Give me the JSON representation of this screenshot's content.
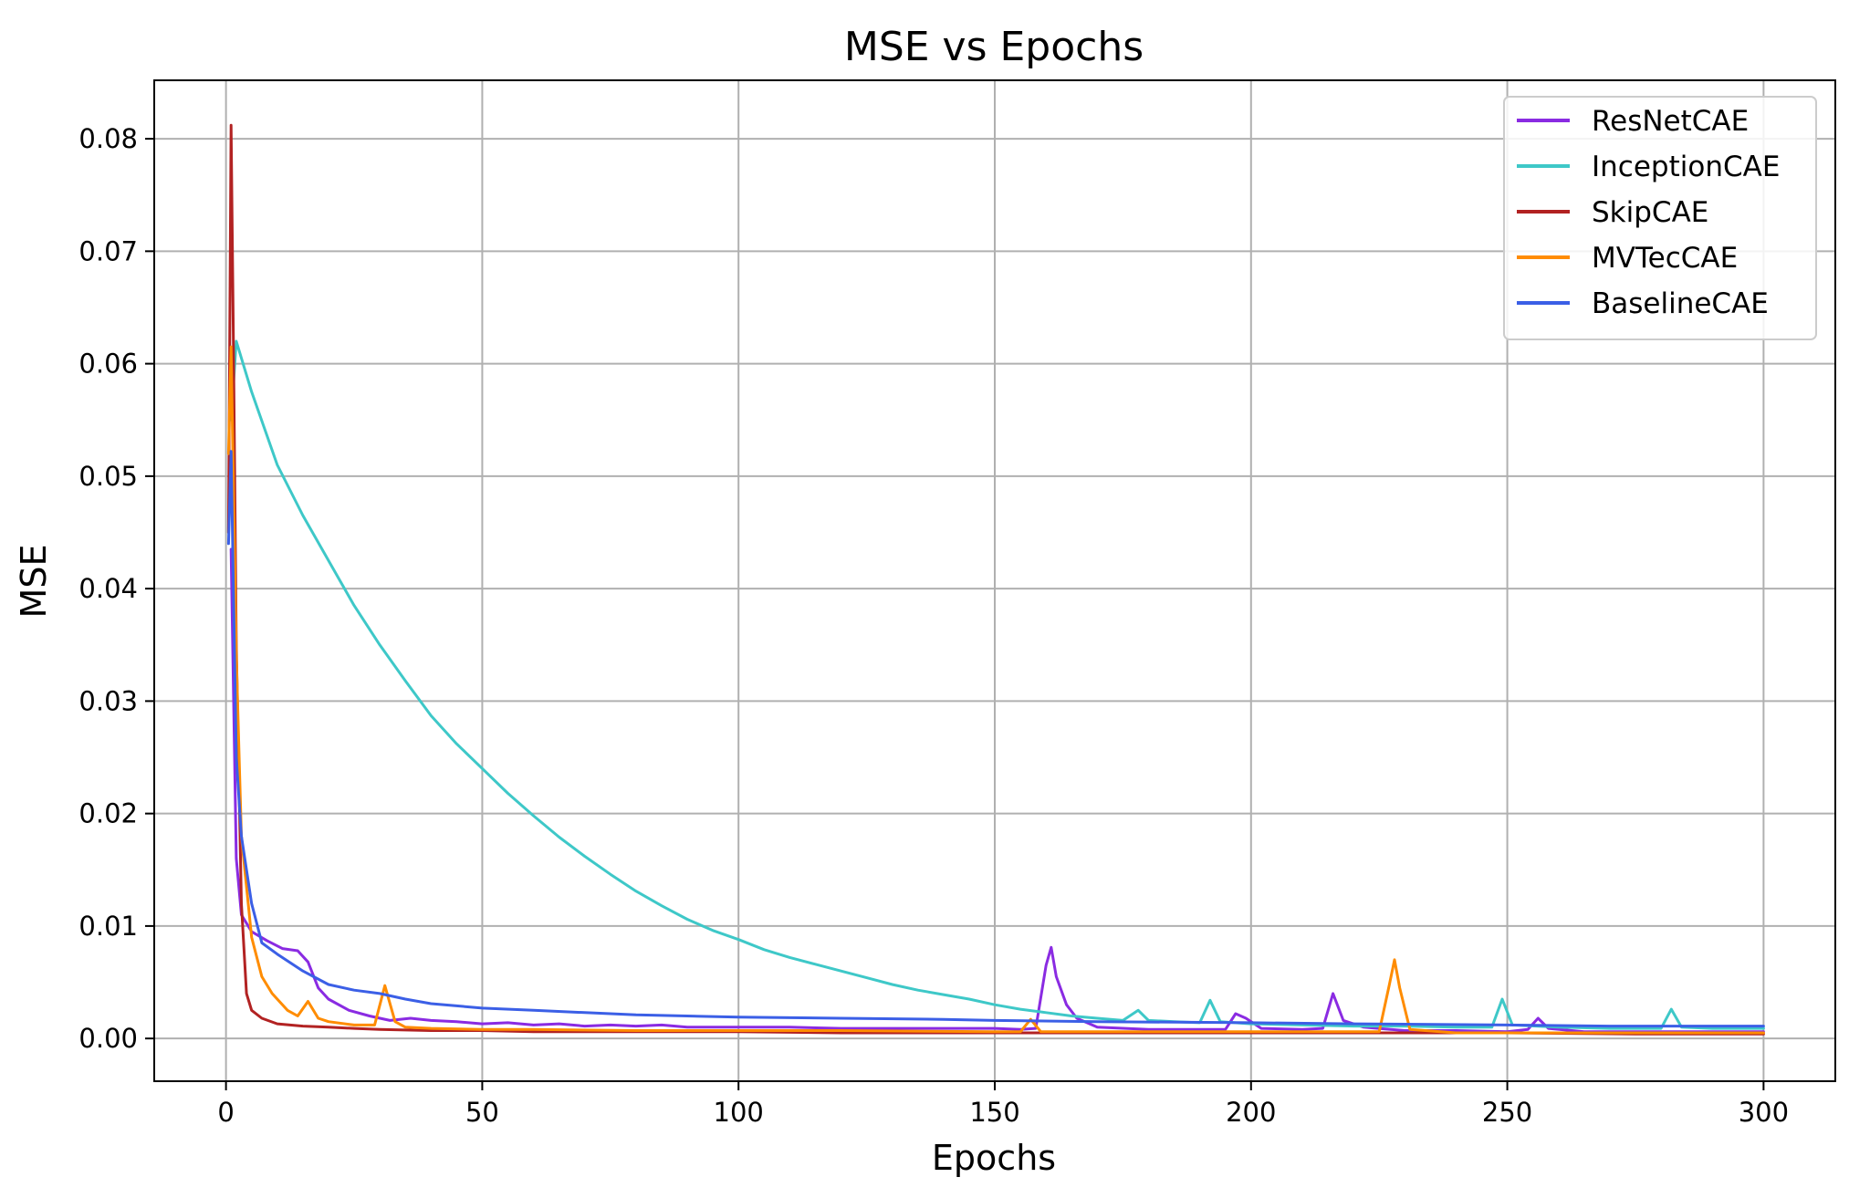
{
  "chart_data": {
    "type": "line",
    "title": "MSE vs Epochs",
    "xlabel": "Epochs",
    "ylabel": "MSE",
    "xlim": [
      -14,
      314
    ],
    "ylim": [
      -0.0038,
      0.0852
    ],
    "xticks": [
      0,
      50,
      100,
      150,
      200,
      250,
      300
    ],
    "yticks": [
      0.0,
      0.01,
      0.02,
      0.03,
      0.04,
      0.05,
      0.06,
      0.07,
      0.08
    ],
    "xtick_labels": [
      "0",
      "50",
      "100",
      "150",
      "200",
      "250",
      "300"
    ],
    "ytick_labels": [
      "0.00",
      "0.01",
      "0.02",
      "0.03",
      "0.04",
      "0.05",
      "0.06",
      "0.07",
      "0.08"
    ],
    "grid": true,
    "legend_position": "top-right",
    "series": [
      {
        "name": "ResNetCAE",
        "color": "#8a2be2",
        "points": [
          [
            1,
            0.0435
          ],
          [
            2,
            0.016
          ],
          [
            3,
            0.011
          ],
          [
            5,
            0.0095
          ],
          [
            8,
            0.0087
          ],
          [
            11,
            0.008
          ],
          [
            14,
            0.0078
          ],
          [
            16,
            0.0068
          ],
          [
            18,
            0.0045
          ],
          [
            20,
            0.0035
          ],
          [
            24,
            0.0025
          ],
          [
            28,
            0.002
          ],
          [
            32,
            0.0016
          ],
          [
            36,
            0.0018
          ],
          [
            40,
            0.0016
          ],
          [
            45,
            0.0015
          ],
          [
            50,
            0.0013
          ],
          [
            55,
            0.0014
          ],
          [
            60,
            0.0012
          ],
          [
            65,
            0.0013
          ],
          [
            70,
            0.0011
          ],
          [
            75,
            0.0012
          ],
          [
            80,
            0.0011
          ],
          [
            85,
            0.0012
          ],
          [
            90,
            0.001
          ],
          [
            100,
            0.001
          ],
          [
            110,
            0.001
          ],
          [
            120,
            0.0009
          ],
          [
            130,
            0.0009
          ],
          [
            140,
            0.0009
          ],
          [
            150,
            0.0009
          ],
          [
            155,
            0.0008
          ],
          [
            158,
            0.0009
          ],
          [
            160,
            0.0065
          ],
          [
            161,
            0.0081
          ],
          [
            162,
            0.0055
          ],
          [
            164,
            0.003
          ],
          [
            166,
            0.0018
          ],
          [
            170,
            0.001
          ],
          [
            180,
            0.0008
          ],
          [
            190,
            0.0008
          ],
          [
            195,
            0.0008
          ],
          [
            197,
            0.0022
          ],
          [
            199,
            0.0018
          ],
          [
            202,
            0.0009
          ],
          [
            210,
            0.0008
          ],
          [
            214,
            0.0009
          ],
          [
            216,
            0.004
          ],
          [
            218,
            0.0016
          ],
          [
            222,
            0.001
          ],
          [
            230,
            0.0007
          ],
          [
            240,
            0.0007
          ],
          [
            250,
            0.0006
          ],
          [
            254,
            0.0008
          ],
          [
            256,
            0.0018
          ],
          [
            258,
            0.0009
          ],
          [
            265,
            0.0006
          ],
          [
            275,
            0.0006
          ],
          [
            285,
            0.0006
          ],
          [
            300,
            0.0006
          ]
        ]
      },
      {
        "name": "InceptionCAE",
        "color": "#3ec8c8",
        "points": [
          [
            1,
            0.055
          ],
          [
            2,
            0.062
          ],
          [
            5,
            0.0575
          ],
          [
            10,
            0.051
          ],
          [
            15,
            0.0465
          ],
          [
            20,
            0.0425
          ],
          [
            25,
            0.0385
          ],
          [
            30,
            0.035
          ],
          [
            35,
            0.0318
          ],
          [
            40,
            0.0287
          ],
          [
            45,
            0.0262
          ],
          [
            50,
            0.024
          ],
          [
            55,
            0.0218
          ],
          [
            60,
            0.0198
          ],
          [
            65,
            0.0179
          ],
          [
            70,
            0.0162
          ],
          [
            75,
            0.0146
          ],
          [
            80,
            0.0131
          ],
          [
            85,
            0.0118
          ],
          [
            90,
            0.0106
          ],
          [
            95,
            0.0096
          ],
          [
            100,
            0.0088
          ],
          [
            105,
            0.0079
          ],
          [
            110,
            0.0072
          ],
          [
            115,
            0.0066
          ],
          [
            120,
            0.006
          ],
          [
            125,
            0.0054
          ],
          [
            130,
            0.0048
          ],
          [
            135,
            0.0043
          ],
          [
            140,
            0.0039
          ],
          [
            145,
            0.0035
          ],
          [
            150,
            0.003
          ],
          [
            155,
            0.0026
          ],
          [
            160,
            0.0023
          ],
          [
            165,
            0.002
          ],
          [
            170,
            0.0018
          ],
          [
            175,
            0.0016
          ],
          [
            178,
            0.0025
          ],
          [
            180,
            0.0016
          ],
          [
            185,
            0.0015
          ],
          [
            190,
            0.0014
          ],
          [
            192,
            0.0034
          ],
          [
            194,
            0.0015
          ],
          [
            200,
            0.0013
          ],
          [
            210,
            0.0012
          ],
          [
            220,
            0.0011
          ],
          [
            230,
            0.0011
          ],
          [
            240,
            0.001
          ],
          [
            247,
            0.001
          ],
          [
            249,
            0.0035
          ],
          [
            251,
            0.0012
          ],
          [
            260,
            0.001
          ],
          [
            270,
            0.0009
          ],
          [
            280,
            0.0009
          ],
          [
            282,
            0.0026
          ],
          [
            284,
            0.001
          ],
          [
            290,
            0.0009
          ],
          [
            300,
            0.0009
          ]
        ]
      },
      {
        "name": "SkipCAE",
        "color": "#b22222",
        "points": [
          [
            0.5,
            0.045
          ],
          [
            1,
            0.0812
          ],
          [
            1.5,
            0.06
          ],
          [
            2,
            0.035
          ],
          [
            3,
            0.012
          ],
          [
            4,
            0.004
          ],
          [
            5,
            0.0025
          ],
          [
            7,
            0.0018
          ],
          [
            10,
            0.0013
          ],
          [
            15,
            0.0011
          ],
          [
            20,
            0.001
          ],
          [
            25,
            0.0009
          ],
          [
            30,
            0.0008
          ],
          [
            40,
            0.0007
          ],
          [
            50,
            0.0007
          ],
          [
            60,
            0.0006
          ],
          [
            80,
            0.0006
          ],
          [
            100,
            0.0006
          ],
          [
            120,
            0.0005
          ],
          [
            150,
            0.0005
          ],
          [
            175,
            0.0005
          ],
          [
            200,
            0.0005
          ],
          [
            225,
            0.0005
          ],
          [
            250,
            0.0005
          ],
          [
            275,
            0.0004
          ],
          [
            300,
            0.0004
          ]
        ]
      },
      {
        "name": "MVTecCAE",
        "color": "#ff8c00",
        "points": [
          [
            0.5,
            0.052
          ],
          [
            1,
            0.0615
          ],
          [
            2,
            0.034
          ],
          [
            3,
            0.018
          ],
          [
            5,
            0.009
          ],
          [
            7,
            0.0055
          ],
          [
            9,
            0.004
          ],
          [
            12,
            0.0025
          ],
          [
            14,
            0.002
          ],
          [
            16,
            0.0033
          ],
          [
            18,
            0.0018
          ],
          [
            20,
            0.0015
          ],
          [
            25,
            0.0012
          ],
          [
            29,
            0.0012
          ],
          [
            31,
            0.0047
          ],
          [
            33,
            0.0015
          ],
          [
            35,
            0.001
          ],
          [
            40,
            0.0009
          ],
          [
            50,
            0.0008
          ],
          [
            60,
            0.0008
          ],
          [
            80,
            0.0007
          ],
          [
            100,
            0.0007
          ],
          [
            120,
            0.0007
          ],
          [
            150,
            0.0006
          ],
          [
            155,
            0.0006
          ],
          [
            157,
            0.0017
          ],
          [
            159,
            0.0006
          ],
          [
            180,
            0.0006
          ],
          [
            200,
            0.0006
          ],
          [
            225,
            0.0006
          ],
          [
            227,
            0.0048
          ],
          [
            228,
            0.007
          ],
          [
            229,
            0.0045
          ],
          [
            231,
            0.0008
          ],
          [
            240,
            0.0005
          ],
          [
            260,
            0.0005
          ],
          [
            280,
            0.0005
          ],
          [
            300,
            0.0005
          ]
        ]
      },
      {
        "name": "BaselineCAE",
        "color": "#3b5fe6",
        "points": [
          [
            0.5,
            0.044
          ],
          [
            1,
            0.0522
          ],
          [
            2,
            0.025
          ],
          [
            3,
            0.018
          ],
          [
            5,
            0.012
          ],
          [
            7,
            0.0085
          ],
          [
            10,
            0.0075
          ],
          [
            15,
            0.006
          ],
          [
            20,
            0.0048
          ],
          [
            25,
            0.0043
          ],
          [
            30,
            0.004
          ],
          [
            35,
            0.0035
          ],
          [
            40,
            0.0031
          ],
          [
            45,
            0.0029
          ],
          [
            50,
            0.0027
          ],
          [
            60,
            0.0025
          ],
          [
            70,
            0.0023
          ],
          [
            80,
            0.0021
          ],
          [
            90,
            0.002
          ],
          [
            100,
            0.0019
          ],
          [
            120,
            0.0018
          ],
          [
            140,
            0.0017
          ],
          [
            150,
            0.0016
          ],
          [
            170,
            0.0015
          ],
          [
            200,
            0.0014
          ],
          [
            220,
            0.0013
          ],
          [
            250,
            0.0012
          ],
          [
            270,
            0.0011
          ],
          [
            300,
            0.0011
          ]
        ]
      }
    ]
  }
}
